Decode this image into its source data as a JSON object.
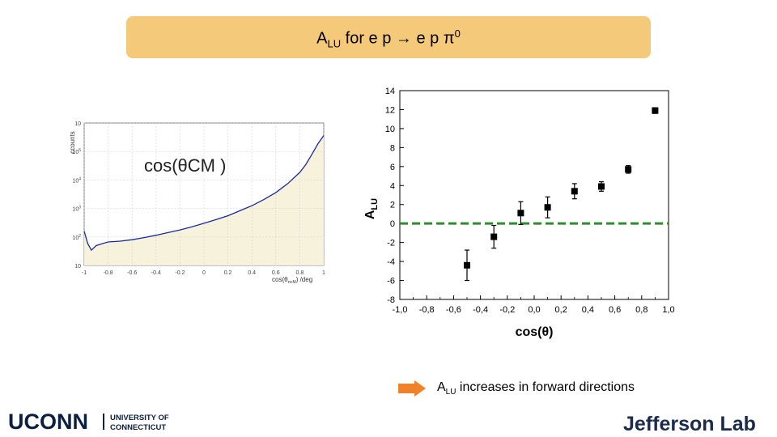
{
  "slide": {
    "title_main": "A",
    "title_sub": "LU",
    "title_rest": " for e p ",
    "title_arrow": "→",
    "title_after": " e p π",
    "title_sup": "0"
  },
  "note": {
    "main": "A",
    "sub": "LU",
    "rest": " increases in forward directions",
    "arrow_icon": "right-arrow-icon"
  },
  "logos": {
    "uconn_big": "UCONN",
    "uconn_line1": "UNIVERSITY OF",
    "uconn_line2": "CONNECTICUT",
    "jlab": "Jefferson Lab"
  },
  "colors": {
    "title_bg": "#f5c97a",
    "arrow": "#f0822a",
    "dashed": "#2e8b2e",
    "uconn": "#0b1f3f",
    "jlab": "#1a2b4c"
  },
  "chart_data": [
    {
      "type": "line",
      "annotation": "cos(θCM )",
      "ylabel": "ccounts",
      "xlabel": "cos(θ",
      "xlabel_sub": "πcM",
      "xlabel_tail": ") /deg",
      "x_ticks": [
        "-1",
        "-0.8",
        "-0.6",
        "-0.4",
        "-0.2",
        "0",
        "0.2",
        "0.4",
        "0.6",
        "0.8",
        "1"
      ],
      "y_ticks": [
        "10",
        "10",
        "10",
        "10",
        "10",
        "10"
      ],
      "y_tick_exps": [
        "",
        "2",
        "3",
        "4",
        "5",
        ""
      ],
      "xlim": [
        -1,
        1
      ],
      "y_scale": "log",
      "series": [
        {
          "x": [
            -1.0,
            -0.97,
            -0.94,
            -0.9,
            -0.85,
            -0.8,
            -0.7,
            -0.6,
            -0.5,
            -0.4,
            -0.3,
            -0.2,
            -0.1,
            0.0,
            0.1,
            0.2,
            0.3,
            0.4,
            0.5,
            0.6,
            0.7,
            0.8,
            0.85,
            0.9,
            0.95,
            1.0
          ],
          "y": [
            200,
            100,
            70,
            90,
            100,
            110,
            115,
            125,
            140,
            160,
            185,
            215,
            255,
            310,
            380,
            470,
            620,
            820,
            1150,
            1700,
            2800,
            5200,
            8000,
            14000,
            25000,
            40000
          ]
        }
      ]
    },
    {
      "type": "scatter",
      "xlabel": "cos(θ)",
      "ylabel": "A",
      "ylabel_sub": "LU",
      "xlim": [
        -1.0,
        1.0
      ],
      "ylim": [
        -8,
        14
      ],
      "x_ticks": [
        "-1,0",
        "-0,8",
        "-0,6",
        "-0,4",
        "-0,2",
        "0,0",
        "0,2",
        "0,4",
        "0,6",
        "0,8",
        "1,0"
      ],
      "y_ticks": [
        "-8",
        "-6",
        "-4",
        "-2",
        "0",
        "2",
        "4",
        "6",
        "8",
        "10",
        "12",
        "14"
      ],
      "reference_line_y": 0,
      "series": [
        {
          "x": [
            -0.5,
            -0.3,
            -0.1,
            0.1,
            0.3,
            0.5,
            0.7,
            0.9
          ],
          "y": [
            -4.4,
            -1.4,
            1.1,
            1.7,
            3.4,
            3.9,
            5.7,
            11.9
          ],
          "err": [
            1.6,
            1.2,
            1.2,
            1.1,
            0.8,
            0.5,
            0.4,
            0.3
          ]
        }
      ]
    }
  ]
}
